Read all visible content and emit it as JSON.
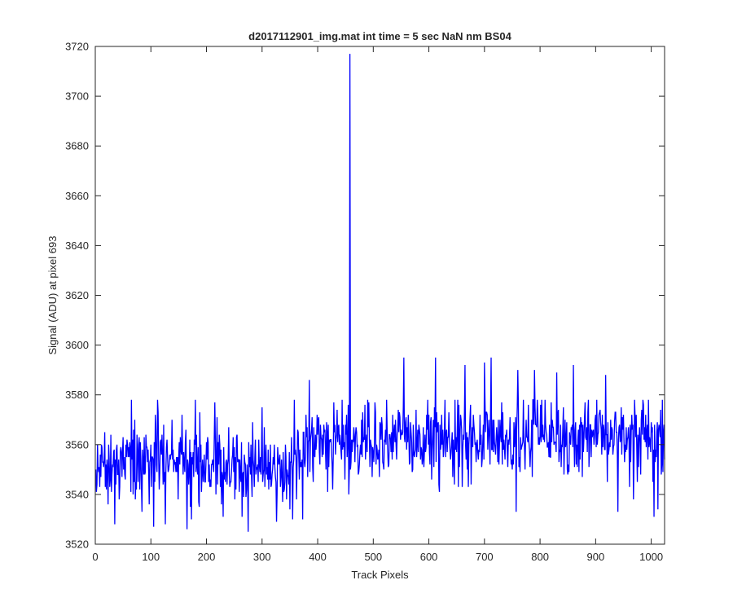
{
  "chart_data": {
    "type": "line",
    "title": "d2017112901_img.mat int time = 5 sec  NaN nm BS04",
    "xlabel": "Track Pixels",
    "ylabel": "Signal (ADU) at pixel 693",
    "xlim": [
      0,
      1024
    ],
    "ylim": [
      3520,
      3720
    ],
    "xticks": [
      0,
      100,
      200,
      300,
      400,
      500,
      600,
      700,
      800,
      900,
      1000
    ],
    "yticks": [
      3520,
      3540,
      3560,
      3580,
      3600,
      3620,
      3640,
      3660,
      3680,
      3700,
      3720
    ],
    "grid": false,
    "series": [
      {
        "color": "#0000ff",
        "x_start": 1,
        "x_step": 1,
        "noise_segments": [
          {
            "x_from": 1,
            "x_to": 380,
            "mean": 3552,
            "std": 8
          },
          {
            "x_from": 381,
            "x_to": 1024,
            "mean": 3562,
            "std": 8
          }
        ],
        "anchors": [
          {
            "x": 35,
            "y": 3528
          },
          {
            "x": 65,
            "y": 3578
          },
          {
            "x": 105,
            "y": 3527
          },
          {
            "x": 108,
            "y": 3572
          },
          {
            "x": 165,
            "y": 3526
          },
          {
            "x": 180,
            "y": 3578
          },
          {
            "x": 215,
            "y": 3577
          },
          {
            "x": 230,
            "y": 3531
          },
          {
            "x": 275,
            "y": 3525
          },
          {
            "x": 300,
            "y": 3575
          },
          {
            "x": 355,
            "y": 3530
          },
          {
            "x": 385,
            "y": 3586
          },
          {
            "x": 456,
            "y": 3540
          },
          {
            "x": 458,
            "y": 3717
          },
          {
            "x": 459,
            "y": 3550
          },
          {
            "x": 555,
            "y": 3595
          },
          {
            "x": 612,
            "y": 3595
          },
          {
            "x": 665,
            "y": 3592
          },
          {
            "x": 700,
            "y": 3593
          },
          {
            "x": 712,
            "y": 3595
          },
          {
            "x": 760,
            "y": 3590
          },
          {
            "x": 790,
            "y": 3590
          },
          {
            "x": 830,
            "y": 3589
          },
          {
            "x": 860,
            "y": 3592
          },
          {
            "x": 918,
            "y": 3588
          },
          {
            "x": 940,
            "y": 3533
          },
          {
            "x": 1005,
            "y": 3531
          },
          {
            "x": 1012,
            "y": 3534
          }
        ]
      }
    ]
  }
}
